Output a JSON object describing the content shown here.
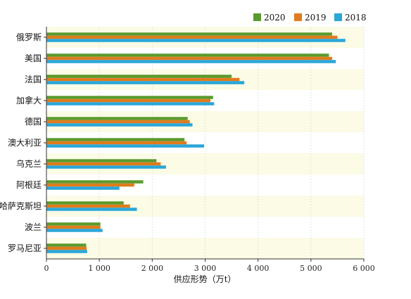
{
  "chart_data": {
    "type": "bar",
    "orientation": "horizontal",
    "categories": [
      "俄罗斯",
      "美国",
      "法国",
      "加拿大",
      "德国",
      "澳大利亚",
      "乌克兰",
      "阿根廷",
      "哈萨克斯坦",
      "波兰",
      "罗马尼亚"
    ],
    "series": [
      {
        "name": "2020",
        "color": "#5a9a2e",
        "values": [
          5400,
          5340,
          3500,
          3150,
          2670,
          2610,
          2080,
          1830,
          1460,
          1020,
          750
        ]
      },
      {
        "name": "2019",
        "color": "#e07b1c",
        "values": [
          5500,
          5400,
          3650,
          3100,
          2710,
          2650,
          2160,
          1660,
          1580,
          1020,
          760
        ]
      },
      {
        "name": "2018",
        "color": "#2aa6d8",
        "values": [
          5650,
          5470,
          3740,
          3170,
          2760,
          2980,
          2260,
          1380,
          1710,
          1060,
          770
        ]
      }
    ],
    "xlim": [
      0,
      6000
    ],
    "xticks": [
      0,
      1000,
      2000,
      3000,
      4000,
      5000,
      6000
    ],
    "xtick_labels": [
      "0",
      "1 000",
      "2 000",
      "3 000",
      "4 000",
      "5 000",
      "6 000"
    ],
    "xlabel": "供应形势（万t）",
    "ylabel": "",
    "title": "",
    "legend_position": "top-right",
    "band_color": "#fbfbe6"
  }
}
